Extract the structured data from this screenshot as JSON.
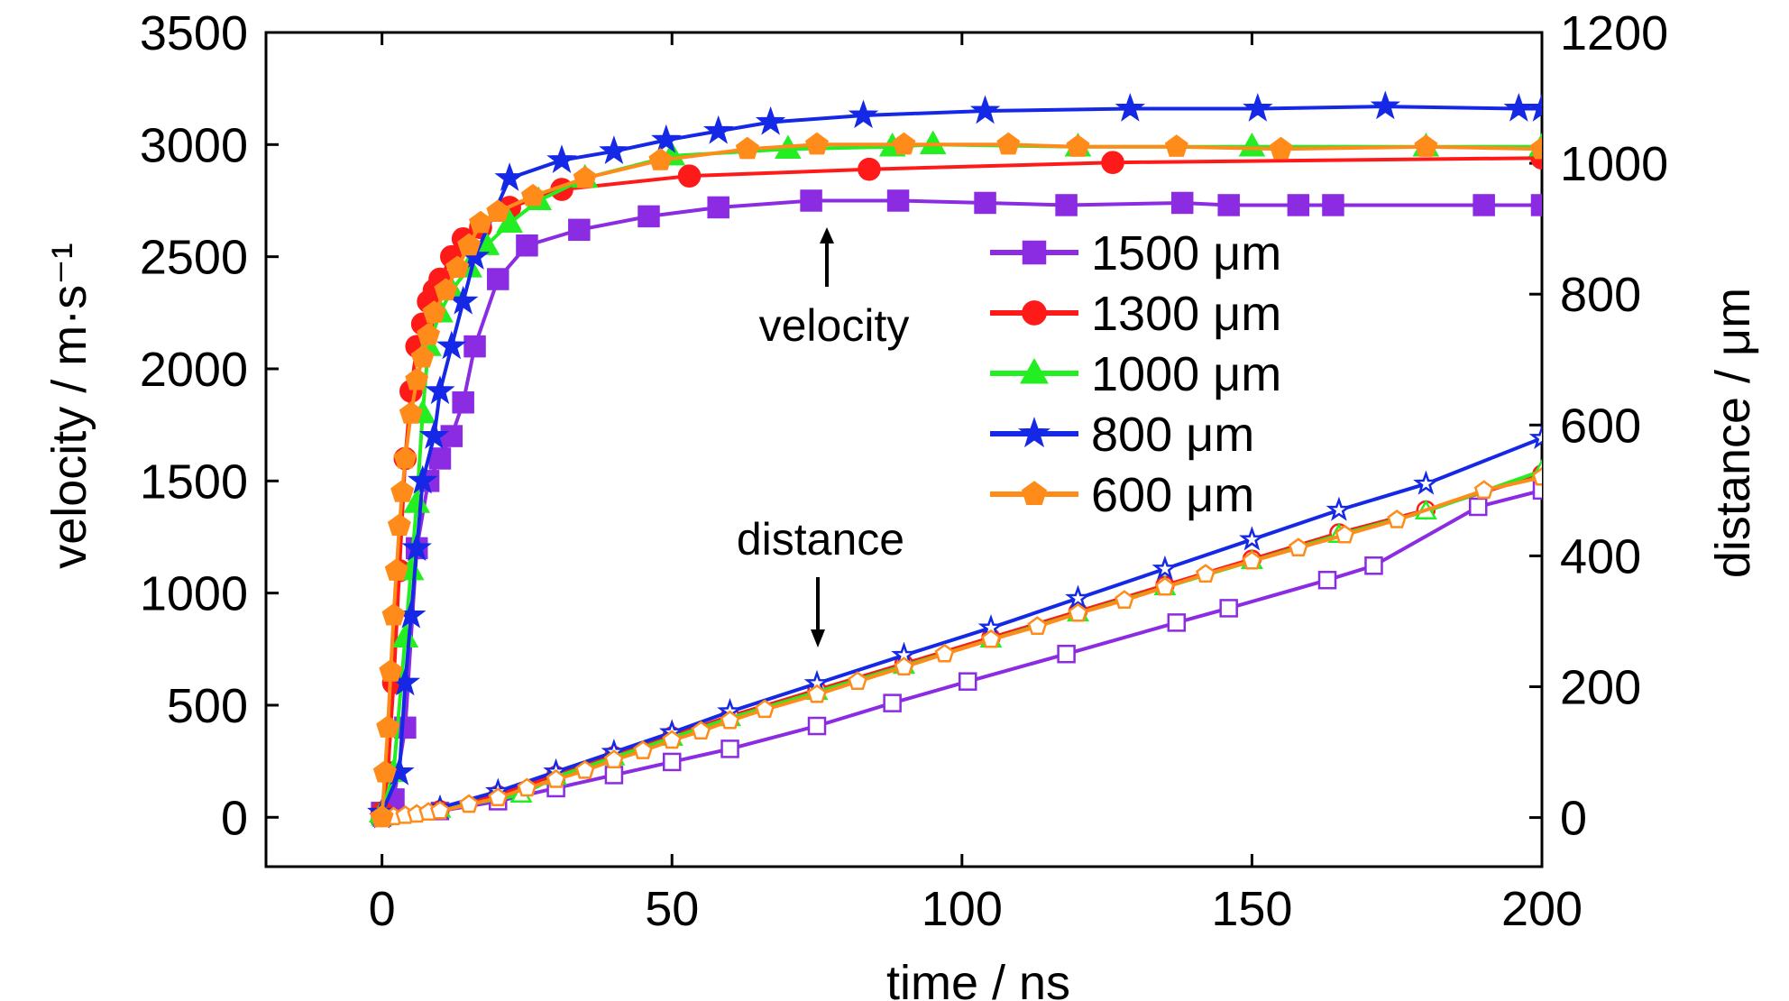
{
  "chart_data": {
    "type": "line",
    "title": "",
    "xlabel": "time / ns",
    "ylabel": "velocity / m·s⁻¹",
    "y2label": "distance / μm",
    "xlim": [
      -20,
      200
    ],
    "ylim": [
      -220,
      3500
    ],
    "y2lim": [
      -75,
      1200
    ],
    "x_ticks": [
      "0",
      "50",
      "100",
      "150",
      "200"
    ],
    "y_ticks": [
      "0",
      "500",
      "1000",
      "1500",
      "2000",
      "2500",
      "3000",
      "3500"
    ],
    "y2_ticks": [
      "0",
      "200",
      "400",
      "600",
      "800",
      "1000",
      "1200"
    ],
    "grid": false,
    "legend_position": "center-right",
    "annotations": {
      "velocity": "velocity",
      "distance": "distance"
    },
    "series": [
      {
        "name": "1500 μm",
        "color": "#8B2BE2",
        "marker": "square",
        "velocity_x": [
          0,
          2,
          4,
          6,
          8,
          10,
          12,
          14,
          16,
          20,
          25,
          34,
          46,
          58,
          74,
          89,
          104,
          118,
          138,
          146,
          158,
          164,
          190,
          200
        ],
        "velocity_y": [
          20,
          80,
          400,
          1200,
          1500,
          1600,
          1700,
          1850,
          2100,
          2400,
          2550,
          2620,
          2680,
          2720,
          2750,
          2750,
          2740,
          2730,
          2740,
          2730,
          2730,
          2730,
          2730,
          2730
        ],
        "distance_x": [
          0,
          10,
          20,
          30,
          40,
          50,
          60,
          75,
          88,
          101,
          118,
          137,
          146,
          163,
          171,
          189,
          200
        ],
        "distance_y": [
          0,
          10,
          25,
          45,
          65,
          85,
          105,
          140,
          175,
          208,
          250,
          298,
          320,
          363,
          385,
          475,
          500
        ]
      },
      {
        "name": "1300 μm",
        "color": "#FF1A1A",
        "marker": "circle",
        "velocity_x": [
          0,
          1,
          2,
          3,
          4,
          5,
          6,
          7,
          8,
          9,
          10,
          12,
          14,
          17,
          22,
          31,
          53,
          84,
          126,
          200
        ],
        "velocity_y": [
          20,
          200,
          600,
          1100,
          1600,
          1900,
          2100,
          2200,
          2300,
          2350,
          2400,
          2500,
          2580,
          2630,
          2720,
          2800,
          2860,
          2890,
          2920,
          2940
        ],
        "distance_x": [
          0,
          10,
          20,
          30,
          40,
          50,
          60,
          75,
          90,
          105,
          120,
          135,
          150,
          165,
          180,
          200
        ],
        "distance_y": [
          0,
          12,
          35,
          65,
          95,
          125,
          155,
          195,
          235,
          275,
          315,
          355,
          395,
          435,
          470,
          525
        ]
      },
      {
        "name": "1000 μm",
        "color": "#22EE22",
        "marker": "triangle",
        "velocity_x": [
          0,
          2,
          4,
          5,
          6,
          7,
          8,
          10,
          12,
          15,
          18,
          22,
          27,
          35,
          50,
          70,
          88,
          95,
          120,
          150,
          180,
          200
        ],
        "velocity_y": [
          20,
          200,
          800,
          1100,
          1400,
          1800,
          2100,
          2250,
          2350,
          2450,
          2550,
          2650,
          2750,
          2850,
          2950,
          2980,
          2990,
          3000,
          2990,
          2990,
          2990,
          2990
        ],
        "distance_x": [
          0,
          10,
          24,
          30,
          40,
          50,
          60,
          75,
          90,
          105,
          120,
          135,
          150,
          165,
          180,
          200
        ],
        "distance_y": [
          0,
          12,
          35,
          62,
          92,
          122,
          152,
          192,
          232,
          272,
          312,
          352,
          392,
          432,
          468,
          530
        ]
      },
      {
        "name": "800 μm",
        "color": "#1428E6",
        "marker": "star",
        "velocity_x": [
          0,
          3,
          4,
          5,
          6,
          7,
          9,
          10,
          12,
          14,
          16,
          22,
          31,
          40,
          49,
          58,
          67,
          83,
          104,
          129,
          151,
          173,
          196,
          200
        ],
        "velocity_y": [
          20,
          200,
          600,
          900,
          1200,
          1500,
          1700,
          1900,
          2100,
          2300,
          2500,
          2850,
          2930,
          2970,
          3020,
          3060,
          3100,
          3130,
          3150,
          3160,
          3160,
          3170,
          3160,
          3160
        ],
        "distance_x": [
          0,
          10,
          20,
          30,
          40,
          50,
          60,
          75,
          90,
          105,
          120,
          135,
          150,
          165,
          180,
          200
        ],
        "distance_y": [
          0,
          15,
          40,
          70,
          100,
          130,
          162,
          205,
          248,
          290,
          335,
          380,
          425,
          470,
          510,
          580
        ]
      },
      {
        "name": "600 μm",
        "color": "#FF8C1A",
        "marker": "pentagon",
        "velocity_x": [
          0,
          0.5,
          1,
          1.5,
          2,
          2.5,
          3,
          3.5,
          4,
          5,
          6,
          7,
          8,
          9,
          11,
          13,
          15,
          17,
          20,
          26,
          35,
          48,
          63,
          75,
          90,
          108,
          120,
          137,
          155,
          180,
          200
        ],
        "velocity_y": [
          0,
          200,
          400,
          650,
          900,
          1100,
          1300,
          1450,
          1600,
          1800,
          1950,
          2050,
          2150,
          2250,
          2350,
          2450,
          2550,
          2650,
          2700,
          2770,
          2850,
          2930,
          2980,
          3000,
          3000,
          3000,
          2990,
          2990,
          2980,
          2990,
          2980
        ],
        "distance_x": [
          0,
          2,
          4,
          6,
          8,
          10,
          15,
          20,
          25,
          30,
          35,
          40,
          45,
          50,
          55,
          60,
          66,
          75,
          82,
          90,
          97,
          105,
          113,
          120,
          128,
          135,
          142,
          150,
          158,
          166,
          175,
          190,
          200
        ],
        "distance_y": [
          0,
          1,
          3,
          5,
          8,
          10,
          20,
          30,
          45,
          58,
          72,
          88,
          102,
          118,
          132,
          148,
          165,
          188,
          208,
          230,
          250,
          272,
          292,
          312,
          332,
          352,
          372,
          392,
          412,
          432,
          455,
          500,
          520
        ]
      }
    ]
  }
}
